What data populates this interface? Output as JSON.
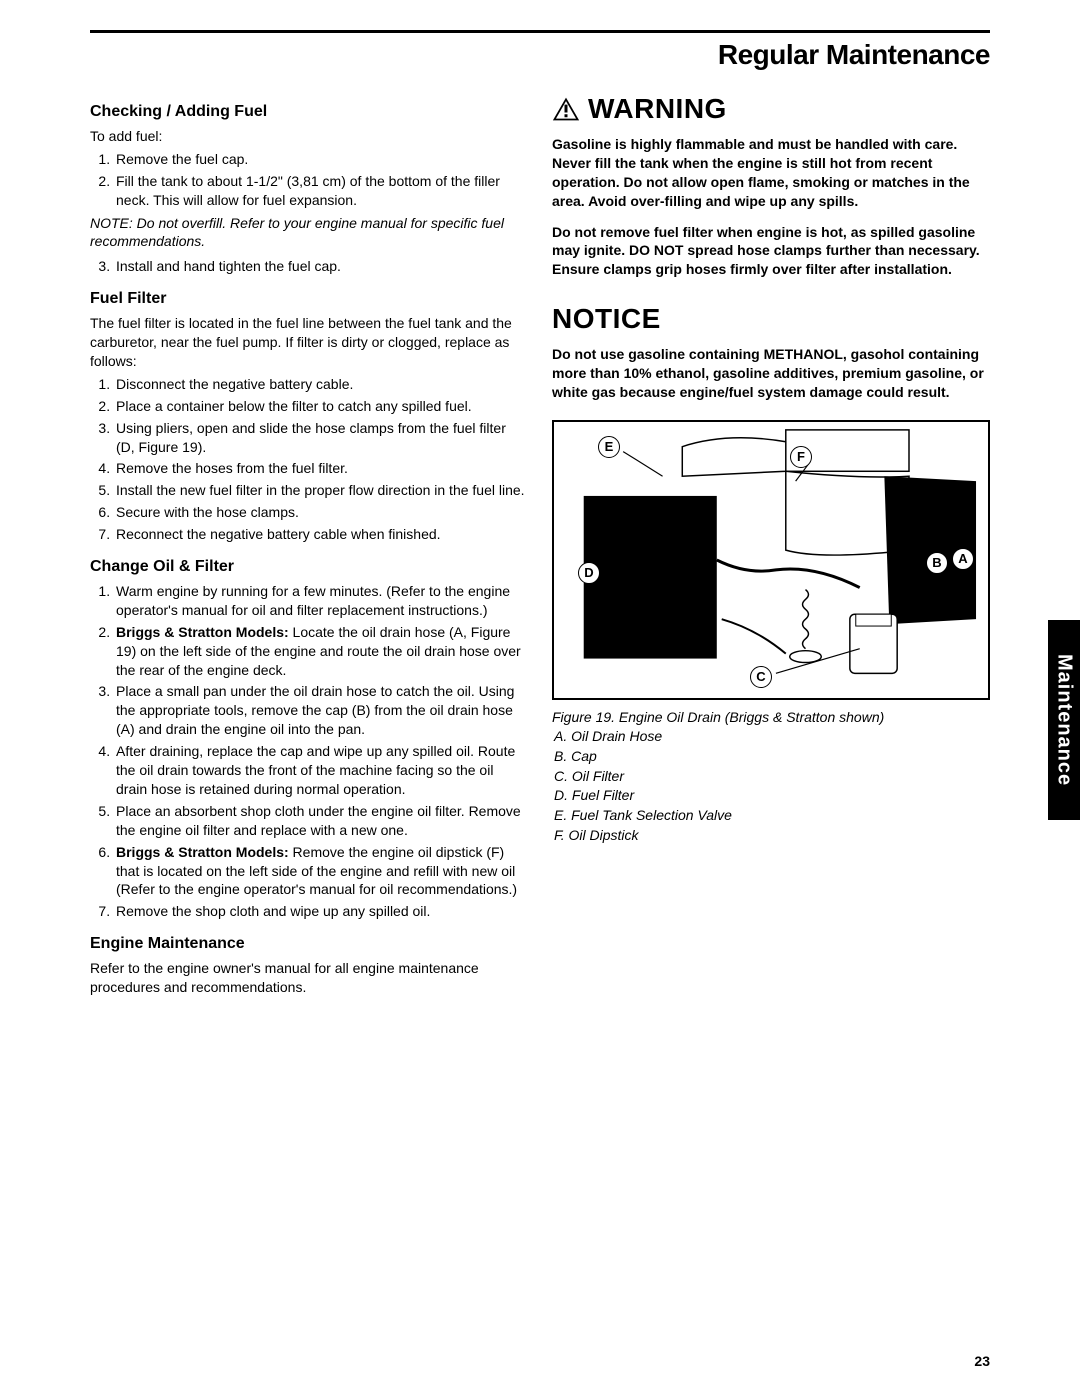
{
  "page_title": "Regular Maintenance",
  "side_tab": "Maintenance",
  "page_number": "23",
  "left": {
    "h1": "Checking / Adding Fuel",
    "intro": "To add fuel:",
    "list1": [
      "Remove the fuel cap.",
      "Fill the tank to about 1-1/2\" (3,81 cm) of the bottom of the filler neck.  This will allow for fuel expansion."
    ],
    "note": "NOTE:  Do not overfill.  Refer to your engine manual for specific fuel recommendations.",
    "list1b": [
      "Install and hand tighten the fuel cap."
    ],
    "h2": "Fuel Filter",
    "p2": "The fuel filter is located in the fuel line between the fuel tank and the carburetor, near the fuel pump.  If filter is dirty or clogged, replace as follows:",
    "list2": [
      "Disconnect the negative battery cable.",
      "Place a container below the filter to catch any spilled fuel.",
      "Using pliers, open and slide the hose clamps from the fuel filter (D, Figure 19).",
      "Remove the hoses from the fuel filter.",
      "Install the new fuel filter in the proper flow direction in the fuel line.",
      "Secure with the hose clamps.",
      "Reconnect the negative battery cable when finished."
    ],
    "h3": "Change Oil & Filter",
    "list3": [
      {
        "text": "Warm engine by running for a few minutes.  (Refer to the engine operator's manual for oil and filter replacement instructions.)"
      },
      {
        "bold": "Briggs & Stratton Models:",
        "text": "  Locate the oil drain hose (A, Figure 19) on the left side of the engine and route the oil drain hose over the rear of the engine deck."
      },
      {
        "text": "Place a small pan under the oil drain hose to catch the oil.  Using the appropriate tools, remove the cap (B) from the oil drain hose (A) and drain the engine oil into the pan."
      },
      {
        "text": "After draining, replace the cap and wipe up any spilled oil.  Route the oil drain towards the front of the machine facing so the oil drain hose is retained during normal operation."
      },
      {
        "text": "Place an absorbent shop cloth under the engine oil filter. Remove the engine oil filter and replace with a new one."
      },
      {
        "bold": "Briggs & Stratton Models:",
        "text": "  Remove the engine oil dipstick (F) that is located on the left side of the engine and refill with new oil (Refer to the engine operator's manual for oil recommendations.)"
      },
      {
        "text": "Remove the shop cloth and wipe up any spilled oil."
      }
    ],
    "h4": "Engine Maintenance",
    "p4": "Refer to the engine owner's manual for all engine maintenance procedures and recommendations."
  },
  "right": {
    "warning_title": "WARNING",
    "warning_p1": "Gasoline is highly flammable and must be handled with care. Never fill the tank when the engine is still hot from recent operation. Do not allow open flame, smoking or matches in the area. Avoid over-filling and wipe up any spills.",
    "warning_p2": "Do not remove fuel filter when engine is hot, as spilled gasoline may ignite. DO NOT spread hose clamps further than necessary. Ensure clamps grip hoses firmly over filter after installation.",
    "notice_title": "NOTICE",
    "notice_p": "Do not use gasoline containing METHANOL, gasohol containing more than 10% ethanol, gasoline additives, premium gasoline, or white gas because engine/fuel system damage could result.",
    "figure_caption": "Figure 19.  Engine Oil Drain (Briggs & Stratton shown)",
    "legend": [
      "A.  Oil Drain Hose",
      "B.  Cap",
      "C.  Oil Filter",
      "D.  Fuel Filter",
      "E.  Fuel Tank Selection Valve",
      "F.  Oil Dipstick"
    ],
    "callouts": {
      "A": "A",
      "B": "B",
      "C": "C",
      "D": "D",
      "E": "E",
      "F": "F"
    }
  },
  "colors": {
    "text": "#000000",
    "bg": "#ffffff",
    "tab_bg": "#000000",
    "tab_fg": "#ffffff"
  }
}
